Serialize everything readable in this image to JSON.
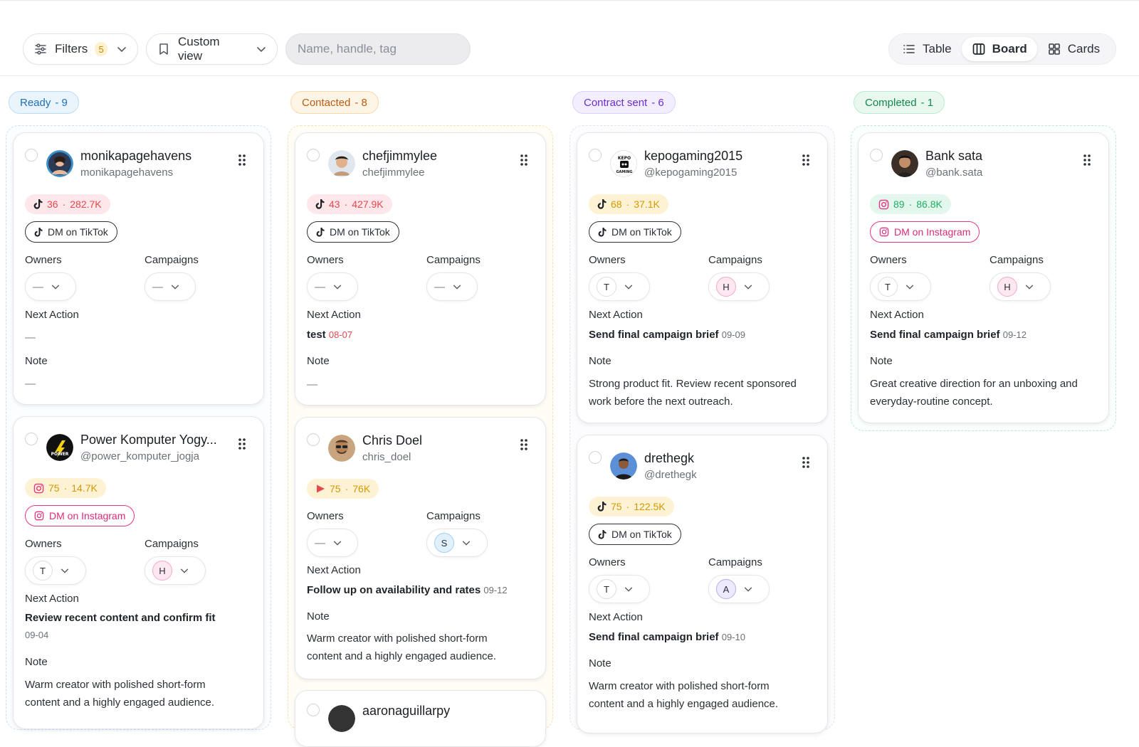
{
  "toolbar": {
    "filters_label": "Filters",
    "filters_count": "5",
    "custom_view_label": "Custom view",
    "search_placeholder": "Name, handle, tag",
    "views": [
      "Table",
      "Board",
      "Cards"
    ],
    "active_view": "Board"
  },
  "columns": [
    {
      "label": "Ready",
      "count": "- 9",
      "color": "#1d6fb8",
      "bg": "#eaf4fd",
      "border": "#bfdcf5"
    },
    {
      "label": "Contacted",
      "count": "- 8",
      "color": "#c05a10",
      "bg": "#fff5e6",
      "border": "#f6d9a8"
    },
    {
      "label": "Contract sent",
      "count": "- 6",
      "color": "#6a2fd1",
      "bg": "#f3eefe",
      "border": "#ddd0fa"
    },
    {
      "label": "Completed",
      "count": "- 1",
      "color": "#16864f",
      "bg": "#e8f8ef",
      "border": "#bfe8d0"
    }
  ],
  "labels": {
    "owners": "Owners",
    "campaigns": "Campaigns",
    "next_action": "Next Action",
    "note": "Note",
    "empty": "—"
  },
  "cards": {
    "c1": {
      "name": "monikapagehavens",
      "handle": "monikapagehavens",
      "stat_score": "36",
      "stat_followers": "282.7K",
      "dm": "DM on TikTok",
      "owner": "—",
      "campaign": "—",
      "next_action": "—",
      "next_date": "",
      "note": "—"
    },
    "c2": {
      "name": "Power Komputer Yogy...",
      "handle": "@power_komputer_jogja",
      "stat_score": "75",
      "stat_followers": "14.7K",
      "dm": "DM on Instagram",
      "owner": "T",
      "campaign": "H",
      "next_action": "Review recent content and confirm fit",
      "next_date": "09-04",
      "note": "Warm creator with polished short-form content and a highly engaged audience."
    },
    "c3": {
      "name": "chefjimmylee",
      "handle": "chefjimmylee",
      "stat_score": "43",
      "stat_followers": "427.9K",
      "dm": "DM on TikTok",
      "owner": "—",
      "campaign": "—",
      "next_action": "test",
      "next_date": "08-07",
      "note": "—"
    },
    "c4": {
      "name": "Chris Doel",
      "handle": "chris_doel",
      "stat_score": "75",
      "stat_followers": "76K",
      "owner": "—",
      "campaign": "S",
      "next_action": "Follow up on availability and rates",
      "next_date": "09-12",
      "note": "Warm creator with polished short-form content and a highly engaged audience."
    },
    "c5": {
      "name": "kepogaming2015",
      "handle": "@kepogaming2015",
      "stat_score": "68",
      "stat_followers": "37.1K",
      "dm": "DM on TikTok",
      "owner": "T",
      "campaign": "H",
      "next_action": "Send final campaign brief",
      "next_date": "09-09",
      "note": "Strong product fit. Review recent sponsored work before the next outreach."
    },
    "c6": {
      "name": "drethegk",
      "handle": "@drethegk",
      "stat_score": "75",
      "stat_followers": "122.5K",
      "dm": "DM on TikTok",
      "owner": "T",
      "campaign": "A",
      "next_action": "Send final campaign brief",
      "next_date": "09-10",
      "note": "Warm creator with polished short-form content and a highly engaged audience."
    },
    "c7": {
      "name": "Bank sata",
      "handle": "@bank.sata",
      "stat_score": "89",
      "stat_followers": "86.8K",
      "dm": "DM on Instagram",
      "owner": "T",
      "campaign": "H",
      "next_action": "Send final campaign brief",
      "next_date": "09-12",
      "note": "Great creative direction for an unboxing and everyday-routine concept."
    },
    "c8": {
      "name": "aaronaguillarpy"
    }
  },
  "colors": {
    "tiktok_bg": "#fde7ea",
    "tiktok_text": "#e5484d",
    "yellow_bg": "#fdf3d4",
    "yellow_text": "#d39a00",
    "green_bg": "#e3f7ec",
    "green_text": "#1fae62",
    "instagram": "#e63784"
  }
}
